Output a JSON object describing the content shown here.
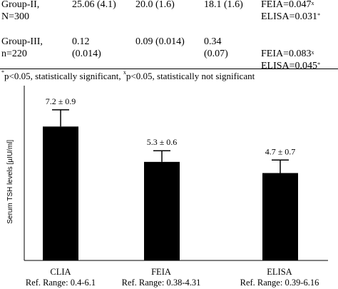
{
  "table": {
    "rows": [
      {
        "group": [
          "Group-II,",
          "N=300"
        ],
        "c1": [
          "25.06 (4.1)"
        ],
        "c2": [
          "20.0 (1.6)"
        ],
        "c3": [
          "18.1 (1.6)"
        ],
        "pv": [
          {
            "text": "FEIA=0.047",
            "mark": "x"
          },
          {
            "text": "ELISA=0.031",
            "mark": "*"
          }
        ]
      },
      {
        "group": [
          "Group-III,",
          "n=220"
        ],
        "c1": [
          "0.12",
          "(0.014)"
        ],
        "c2": [
          "0.09 (0.014)"
        ],
        "c3": [
          "0.34",
          "(0.07)"
        ],
        "pv": [
          {
            "text": "FEIA=0.083",
            "mark": "x"
          },
          {
            "text": "ELISA=0.045",
            "mark": "*"
          }
        ]
      }
    ],
    "footnote": {
      "mark1": "*",
      "text1": "p<0.05, statistically significant, ",
      "mark2": "x",
      "text2": "p<0.05, statistically not significant"
    }
  },
  "chart_data": {
    "type": "bar",
    "categories": [
      "CLIA",
      "FEIA",
      "ELISA"
    ],
    "ref_ranges": [
      "Ref. Range: 0.4-6.1",
      "Ref. Range: 0.38-4.31",
      "Ref. Range: 0.39-6.16"
    ],
    "values": [
      7.2,
      5.3,
      4.7
    ],
    "errors": [
      0.9,
      0.6,
      0.7
    ],
    "value_labels": [
      "7.2 ± 0.9",
      "5.3 ± 0.6",
      "4.7 ± 0.7"
    ],
    "ylabel": "Serum TSH levels [µIU/ml]",
    "ylim": [
      0,
      9.4
    ],
    "bar_color": "#000000",
    "grid": false
  }
}
